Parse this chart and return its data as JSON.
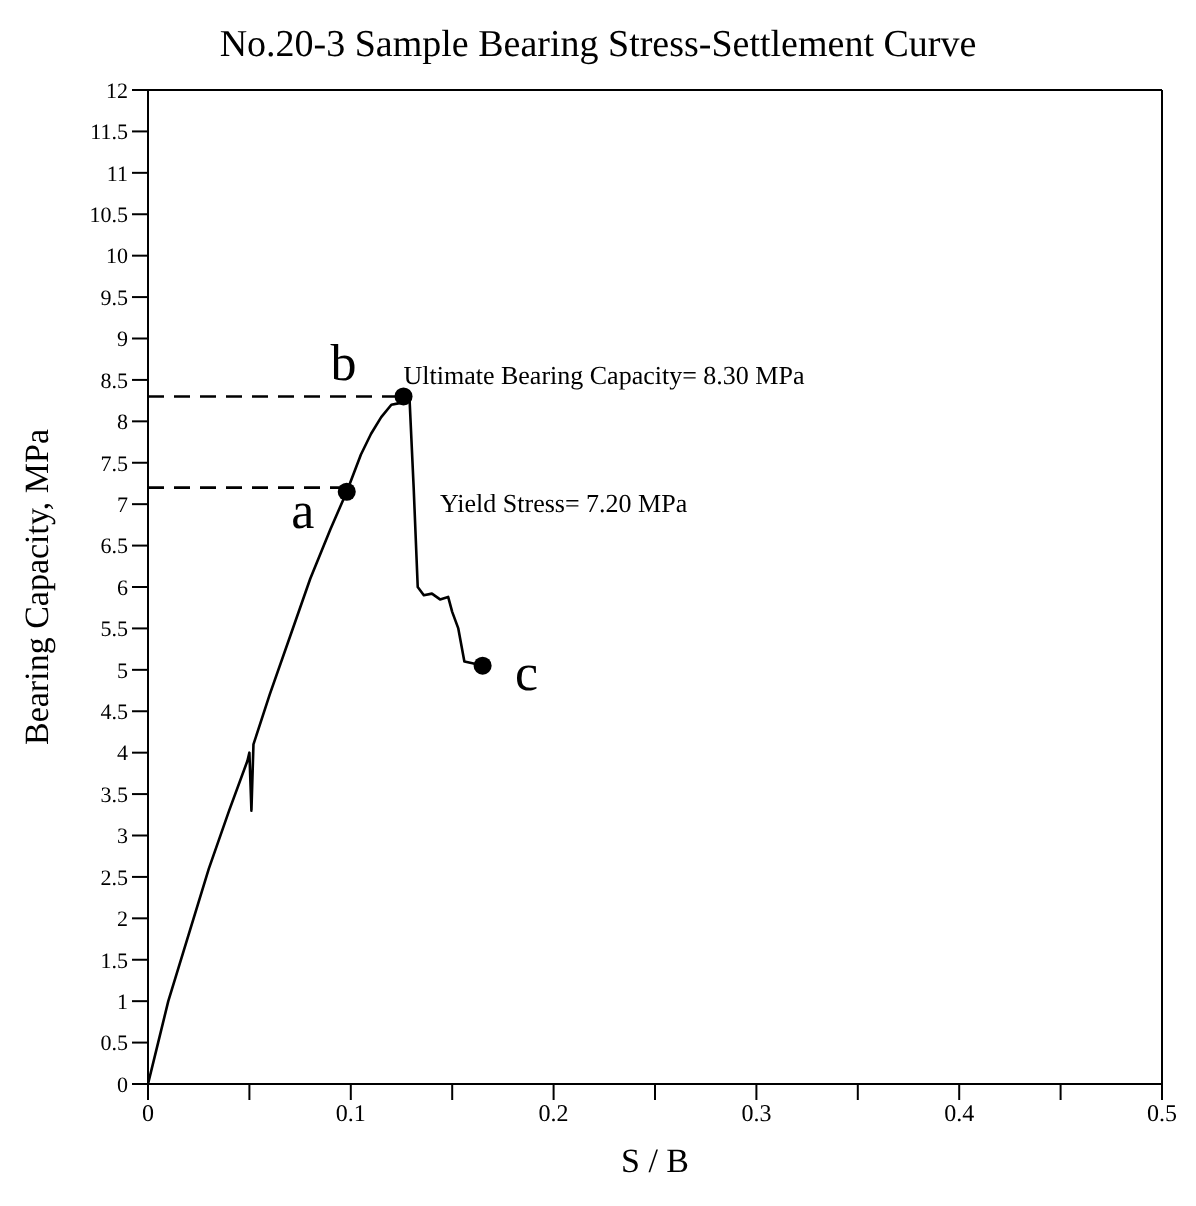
{
  "chart_data": {
    "type": "line",
    "title": "No.20-3 Sample Bearing Stress-Settlement Curve",
    "xlabel": "S / B",
    "ylabel": "Bearing Capacity, MPa",
    "xlim": [
      0,
      0.5
    ],
    "xticks": [
      0,
      {
        "value": 0.05,
        "label": null
      },
      0.1,
      {
        "value": 0.15,
        "label": null
      },
      0.2,
      {
        "value": 0.25,
        "label": null
      },
      0.3,
      {
        "value": 0.35,
        "label": null
      },
      0.4,
      {
        "value": 0.45,
        "label": null
      },
      0.5
    ],
    "ylim": [
      0,
      12
    ],
    "yticks": [
      0,
      0.5,
      1,
      1.5,
      2,
      2.5,
      3,
      3.5,
      4,
      4.5,
      5,
      5.5,
      6,
      6.5,
      7,
      7.5,
      8,
      8.5,
      9,
      9.5,
      10,
      10.5,
      11,
      11.5,
      12
    ],
    "series": [
      {
        "type": "line",
        "color": "#000000",
        "marker": "none",
        "line_style": "solid",
        "x": [
          0,
          0.005,
          0.01,
          0.02,
          0.03,
          0.04,
          0.049,
          0.05,
          0.051,
          0.052,
          0.06,
          0.07,
          0.08,
          0.09,
          0.098,
          0.105,
          0.11,
          0.115,
          0.12,
          0.124,
          0.127,
          0.129,
          0.131,
          0.133,
          0.136,
          0.14,
          0.144,
          0.148,
          0.15,
          0.153,
          0.156,
          0.16,
          0.165
        ],
        "values": [
          0,
          0.5,
          1,
          1.8,
          2.6,
          3.3,
          3.9,
          4.0,
          3.3,
          4.1,
          4.7,
          5.4,
          6.1,
          6.7,
          7.15,
          7.6,
          7.85,
          8.05,
          8.2,
          8.22,
          8.3,
          8.25,
          7.2,
          6.0,
          5.9,
          5.92,
          5.85,
          5.88,
          5.7,
          5.5,
          5.1,
          5.08,
          5.05
        ]
      },
      {
        "type": "line",
        "color": "#000000",
        "marker": "none",
        "line_style": "dashed",
        "x": [
          0,
          0.098
        ],
        "values": [
          7.2,
          7.2
        ]
      },
      {
        "type": "line",
        "color": "#000000",
        "marker": "none",
        "line_style": "dashed",
        "x": [
          0,
          0.126
        ],
        "values": [
          8.3,
          8.3
        ]
      },
      {
        "type": "scatter",
        "color": "#000000",
        "marker": "circle",
        "x": [
          0.098,
          0.126,
          0.165
        ],
        "values": [
          7.15,
          8.3,
          5.05
        ]
      }
    ],
    "annotations": [
      {
        "text": "a",
        "x": 0.098,
        "y": 7.15
      },
      {
        "text": "b",
        "x": 0.126,
        "y": 8.3
      },
      {
        "text": "c",
        "x": 0.165,
        "y": 5.05
      },
      {
        "text": "Ultimate Bearing Capacity= 8.30 MPa",
        "x": 0.126,
        "y": 8.3
      },
      "Yield Stress= 7.20 MPa"
    ]
  }
}
